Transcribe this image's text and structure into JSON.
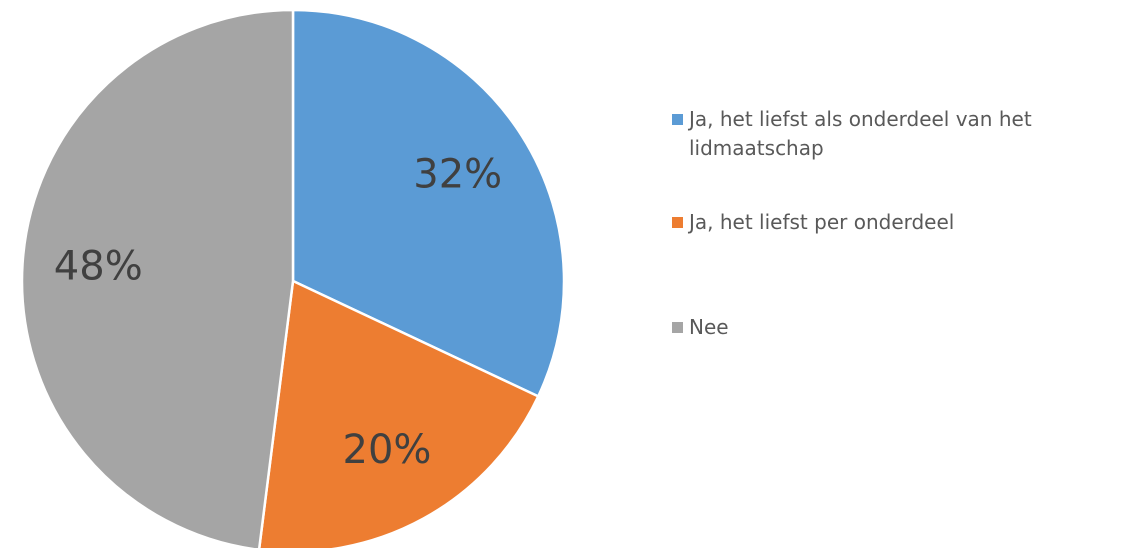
{
  "chart_data": {
    "type": "pie",
    "categories": [
      "Ja, het liefst als onderdeel van het lidmaatschap",
      "Ja, het liefst per onderdeel",
      "Nee"
    ],
    "values": [
      32,
      20,
      48
    ],
    "value_labels": [
      "32%",
      "20%",
      "48%"
    ],
    "colors": [
      "#5b9bd5",
      "#ed7d31",
      "#a5a5a5"
    ],
    "legend": "right"
  }
}
